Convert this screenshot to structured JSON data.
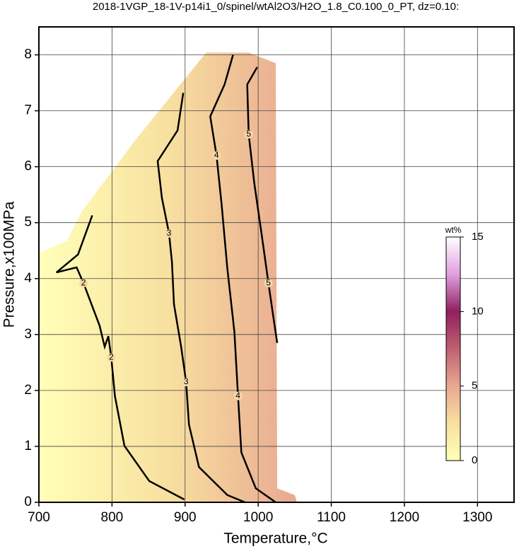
{
  "chart_data": {
    "type": "contour",
    "title": "2018-1VGP_18-1V-p14i1_0/spinel/wtAl2O3/H2O_1.8_C0.100_0_PT, dz=0.10:",
    "x_label": "Temperature,°C",
    "y_label": "Pressure,x100MPa",
    "xlim": [
      700,
      1350
    ],
    "ylim": [
      0,
      8.5
    ],
    "xticks": [
      700,
      800,
      900,
      1000,
      1100,
      1200,
      1300
    ],
    "yticks": [
      0,
      1,
      2,
      3,
      4,
      5,
      6,
      7,
      8
    ],
    "grid": true,
    "field": {
      "x": [
        700,
        700,
        739,
        758,
        802,
        831,
        870,
        909,
        928.6,
        987,
        1024,
        1026,
        1050,
        1053
      ],
      "y": [
        0,
        4.46,
        4.68,
        5.19,
        5.95,
        6.46,
        7.09,
        7.72,
        8.04,
        8.04,
        7.85,
        0.25,
        0.13,
        0
      ]
    },
    "contours": [
      {
        "level": 2,
        "x": [
          773,
          753.5,
          724,
          751.6,
          761,
          783,
          790,
          795,
          799,
          804,
          817,
          851,
          899
        ],
        "y": [
          5.13,
          4.43,
          4.11,
          4.2,
          3.92,
          3.16,
          2.78,
          2.97,
          2.59,
          1.9,
          1.01,
          0.38,
          0.05
        ]
      },
      {
        "level": 3,
        "x": [
          897.5,
          889.7,
          862.5,
          868.3,
          878,
          882,
          884.8,
          894.6,
          901.4,
          905.3,
          919,
          957.8,
          982
        ],
        "y": [
          7.32,
          6.65,
          6.1,
          5.44,
          4.81,
          4.3,
          3.54,
          2.78,
          2.15,
          1.39,
          0.63,
          0.13,
          0
        ]
      },
      {
        "level": 4,
        "x": [
          965.6,
          954,
          934.4,
          943,
          950,
          957.8,
          967.5,
          972.4,
          977,
          996.7,
          1024
        ],
        "y": [
          8.0,
          7.47,
          6.9,
          6.2,
          5.32,
          4.18,
          3.04,
          1.9,
          0.89,
          0.25,
          0
        ]
      },
      {
        "level": 5,
        "x": [
          998.6,
          985,
          987,
          994.7,
          1004.5,
          1014,
          1021,
          1026
        ],
        "y": [
          7.78,
          7.47,
          6.58,
          5.7,
          4.81,
          3.92,
          3.29,
          2.85
        ]
      }
    ],
    "colorbar": {
      "label": "wt%",
      "lim": [
        0,
        15
      ],
      "ticks": [
        0,
        5,
        10,
        15
      ],
      "colormap": [
        "#ffffb8",
        "#f8e0a0",
        "#e8a890",
        "#c06070",
        "#902060",
        "#e0a0e0",
        "#ffffff"
      ]
    }
  }
}
